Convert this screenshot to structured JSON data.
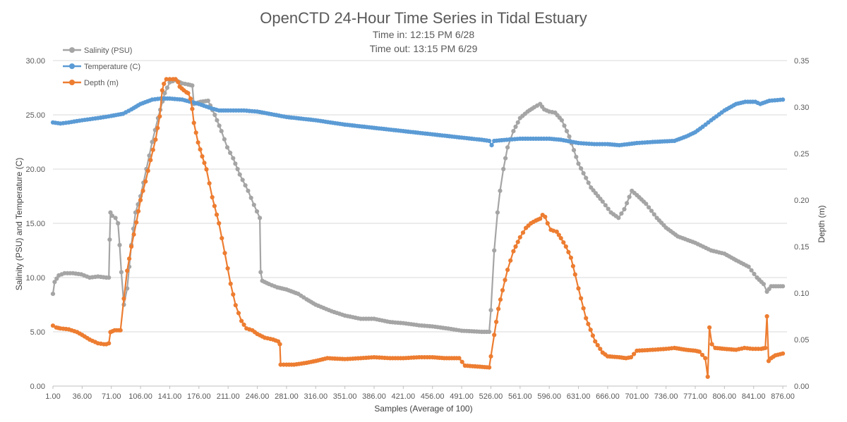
{
  "chart_data": {
    "type": "line",
    "title": "OpenCTD 24-Hour Time Series in Tidal Estuary",
    "subtitle_lines": [
      "Time in: 12:15 PM 6/28",
      "Time out: 13:15 PM 6/29"
    ],
    "xlabel": "Samples (Average of 100)",
    "ylabel_left": "Salinity (PSU) and Temperature (C)",
    "ylabel_right": "Depth (m)",
    "x_ticks": [
      "1.00",
      "36.00",
      "71.00",
      "106.00",
      "141.00",
      "176.00",
      "211.00",
      "246.00",
      "281.00",
      "316.00",
      "351.00",
      "386.00",
      "421.00",
      "456.00",
      "491.00",
      "526.00",
      "561.00",
      "596.00",
      "631.00",
      "666.00",
      "701.00",
      "736.00",
      "771.00",
      "806.00",
      "841.00",
      "876.00"
    ],
    "x_range": [
      1,
      881
    ],
    "y_left_ticks": [
      "0.00",
      "5.00",
      "10.00",
      "15.00",
      "20.00",
      "25.00",
      "30.00"
    ],
    "y_left_range": [
      0,
      30
    ],
    "y_right_ticks": [
      "0.00",
      "0.05",
      "0.10",
      "0.15",
      "0.20",
      "0.25",
      "0.30",
      "0.35"
    ],
    "y_right_range": [
      0,
      0.35
    ],
    "grid": "horizontal",
    "legend_position": "top-left",
    "series": [
      {
        "name": "Salinity (PSU)",
        "axis": "left",
        "color": "#a5a5a5",
        "points": [
          [
            1,
            8.5
          ],
          [
            3,
            9.6
          ],
          [
            8,
            10.2
          ],
          [
            15,
            10.4
          ],
          [
            25,
            10.4
          ],
          [
            35,
            10.3
          ],
          [
            45,
            10.0
          ],
          [
            55,
            10.1
          ],
          [
            65,
            10.0
          ],
          [
            68,
            10.0
          ],
          [
            69,
            13.5
          ],
          [
            70,
            16.0
          ],
          [
            72,
            15.7
          ],
          [
            76,
            15.5
          ],
          [
            79,
            15.0
          ],
          [
            81,
            13.0
          ],
          [
            83,
            10.5
          ],
          [
            86,
            7.5
          ],
          [
            90,
            9.0
          ],
          [
            95,
            13.0
          ],
          [
            100,
            16.0
          ],
          [
            106,
            17.5
          ],
          [
            113,
            20.0
          ],
          [
            120,
            22.5
          ],
          [
            127,
            24.7
          ],
          [
            135,
            27.0
          ],
          [
            141,
            28.0
          ],
          [
            148,
            28.2
          ],
          [
            156,
            27.9
          ],
          [
            163,
            27.8
          ],
          [
            168,
            27.7
          ],
          [
            170,
            26.0
          ],
          [
            178,
            26.2
          ],
          [
            187,
            26.3
          ],
          [
            195,
            25.0
          ],
          [
            203,
            23.5
          ],
          [
            210,
            22.0
          ],
          [
            217,
            21.0
          ],
          [
            225,
            19.5
          ],
          [
            235,
            18.0
          ],
          [
            242,
            16.7
          ],
          [
            249,
            15.5
          ],
          [
            250,
            10.5
          ],
          [
            252,
            9.7
          ],
          [
            260,
            9.4
          ],
          [
            270,
            9.1
          ],
          [
            281,
            8.9
          ],
          [
            295,
            8.5
          ],
          [
            305,
            8.0
          ],
          [
            316,
            7.5
          ],
          [
            335,
            6.9
          ],
          [
            351,
            6.5
          ],
          [
            370,
            6.2
          ],
          [
            386,
            6.2
          ],
          [
            405,
            5.9
          ],
          [
            421,
            5.8
          ],
          [
            440,
            5.6
          ],
          [
            456,
            5.5
          ],
          [
            475,
            5.3
          ],
          [
            491,
            5.1
          ],
          [
            515,
            5.0
          ],
          [
            524,
            5.0
          ],
          [
            526,
            7.0
          ],
          [
            530,
            12.5
          ],
          [
            534,
            16.0
          ],
          [
            537,
            18.0
          ],
          [
            541,
            20.0
          ],
          [
            546,
            22.0
          ],
          [
            553,
            23.5
          ],
          [
            561,
            24.7
          ],
          [
            570,
            25.3
          ],
          [
            578,
            25.7
          ],
          [
            585,
            26.0
          ],
          [
            590,
            25.5
          ],
          [
            596,
            25.3
          ],
          [
            603,
            25.2
          ],
          [
            611,
            24.5
          ],
          [
            620,
            23.0
          ],
          [
            631,
            20.5
          ],
          [
            646,
            18.3
          ],
          [
            660,
            17.0
          ],
          [
            670,
            16.0
          ],
          [
            679,
            15.5
          ],
          [
            686,
            16.3
          ],
          [
            695,
            18.0
          ],
          [
            701,
            17.6
          ],
          [
            712,
            16.8
          ],
          [
            725,
            15.5
          ],
          [
            736,
            14.6
          ],
          [
            750,
            13.8
          ],
          [
            771,
            13.2
          ],
          [
            790,
            12.5
          ],
          [
            806,
            12.2
          ],
          [
            820,
            11.6
          ],
          [
            835,
            11.0
          ],
          [
            845,
            10.0
          ],
          [
            853,
            9.4
          ],
          [
            857,
            8.7
          ],
          [
            862,
            9.2
          ],
          [
            876,
            9.2
          ]
        ]
      },
      {
        "name": "Temperature (C)",
        "axis": "left",
        "color": "#5b9bd5",
        "points": [
          [
            1,
            24.3
          ],
          [
            10,
            24.2
          ],
          [
            20,
            24.3
          ],
          [
            36,
            24.5
          ],
          [
            55,
            24.7
          ],
          [
            71,
            24.9
          ],
          [
            85,
            25.1
          ],
          [
            95,
            25.5
          ],
          [
            106,
            26.0
          ],
          [
            120,
            26.4
          ],
          [
            130,
            26.5
          ],
          [
            141,
            26.5
          ],
          [
            156,
            26.4
          ],
          [
            176,
            26.0
          ],
          [
            191,
            25.6
          ],
          [
            200,
            25.4
          ],
          [
            211,
            25.4
          ],
          [
            230,
            25.4
          ],
          [
            246,
            25.3
          ],
          [
            260,
            25.1
          ],
          [
            281,
            24.8
          ],
          [
            316,
            24.5
          ],
          [
            351,
            24.1
          ],
          [
            386,
            23.8
          ],
          [
            421,
            23.5
          ],
          [
            456,
            23.2
          ],
          [
            491,
            22.9
          ],
          [
            515,
            22.7
          ],
          [
            524,
            22.6
          ],
          [
            527,
            22.2
          ],
          [
            530,
            22.6
          ],
          [
            545,
            22.7
          ],
          [
            561,
            22.8
          ],
          [
            580,
            22.8
          ],
          [
            596,
            22.8
          ],
          [
            610,
            22.7
          ],
          [
            631,
            22.4
          ],
          [
            650,
            22.3
          ],
          [
            666,
            22.3
          ],
          [
            680,
            22.2
          ],
          [
            701,
            22.4
          ],
          [
            720,
            22.5
          ],
          [
            746,
            22.6
          ],
          [
            760,
            23.0
          ],
          [
            771,
            23.4
          ],
          [
            780,
            23.9
          ],
          [
            790,
            24.5
          ],
          [
            806,
            25.4
          ],
          [
            820,
            26.0
          ],
          [
            831,
            26.2
          ],
          [
            843,
            26.2
          ],
          [
            849,
            26.0
          ],
          [
            860,
            26.3
          ],
          [
            876,
            26.4
          ]
        ]
      },
      {
        "name": "Depth (m)",
        "axis": "right",
        "color": "#ed7d31",
        "points": [
          [
            1,
            0.065
          ],
          [
            5,
            0.063
          ],
          [
            10,
            0.062
          ],
          [
            20,
            0.061
          ],
          [
            30,
            0.058
          ],
          [
            36,
            0.055
          ],
          [
            45,
            0.05
          ],
          [
            55,
            0.046
          ],
          [
            62,
            0.045
          ],
          [
            65,
            0.045
          ],
          [
            68,
            0.046
          ],
          [
            70,
            0.058
          ],
          [
            75,
            0.06
          ],
          [
            80,
            0.06
          ],
          [
            82,
            0.06
          ],
          [
            86,
            0.094
          ],
          [
            90,
            0.124
          ],
          [
            95,
            0.15
          ],
          [
            101,
            0.176
          ],
          [
            106,
            0.2
          ],
          [
            112,
            0.22
          ],
          [
            118,
            0.243
          ],
          [
            124,
            0.265
          ],
          [
            129,
            0.29
          ],
          [
            132,
            0.318
          ],
          [
            134,
            0.325
          ],
          [
            137,
            0.33
          ],
          [
            141,
            0.33
          ],
          [
            145,
            0.33
          ],
          [
            148,
            0.33
          ],
          [
            151,
            0.327
          ],
          [
            153,
            0.322
          ],
          [
            158,
            0.318
          ],
          [
            161,
            0.316
          ],
          [
            163,
            0.315
          ],
          [
            166,
            0.309
          ],
          [
            168,
            0.298
          ],
          [
            170,
            0.283
          ],
          [
            175,
            0.262
          ],
          [
            180,
            0.247
          ],
          [
            185,
            0.233
          ],
          [
            192,
            0.203
          ],
          [
            200,
            0.175
          ],
          [
            207,
            0.143
          ],
          [
            214,
            0.11
          ],
          [
            220,
            0.087
          ],
          [
            227,
            0.07
          ],
          [
            233,
            0.062
          ],
          [
            240,
            0.06
          ],
          [
            246,
            0.056
          ],
          [
            255,
            0.052
          ],
          [
            265,
            0.05
          ],
          [
            271,
            0.048
          ],
          [
            273,
            0.045
          ],
          [
            274,
            0.023
          ],
          [
            281,
            0.023
          ],
          [
            290,
            0.023
          ],
          [
            305,
            0.025
          ],
          [
            316,
            0.027
          ],
          [
            330,
            0.03
          ],
          [
            351,
            0.029
          ],
          [
            370,
            0.03
          ],
          [
            386,
            0.031
          ],
          [
            405,
            0.03
          ],
          [
            421,
            0.03
          ],
          [
            440,
            0.031
          ],
          [
            456,
            0.031
          ],
          [
            470,
            0.03
          ],
          [
            488,
            0.03
          ],
          [
            495,
            0.022
          ],
          [
            510,
            0.021
          ],
          [
            524,
            0.02
          ],
          [
            526,
            0.032
          ],
          [
            530,
            0.055
          ],
          [
            535,
            0.083
          ],
          [
            540,
            0.103
          ],
          [
            546,
            0.125
          ],
          [
            553,
            0.145
          ],
          [
            561,
            0.16
          ],
          [
            568,
            0.17
          ],
          [
            574,
            0.175
          ],
          [
            580,
            0.178
          ],
          [
            585,
            0.18
          ],
          [
            588,
            0.184
          ],
          [
            591,
            0.182
          ],
          [
            594,
            0.175
          ],
          [
            598,
            0.168
          ],
          [
            601,
            0.167
          ],
          [
            605,
            0.166
          ],
          [
            610,
            0.159
          ],
          [
            616,
            0.15
          ],
          [
            622,
            0.138
          ],
          [
            627,
            0.12
          ],
          [
            631,
            0.105
          ],
          [
            640,
            0.073
          ],
          [
            651,
            0.048
          ],
          [
            660,
            0.036
          ],
          [
            666,
            0.032
          ],
          [
            680,
            0.031
          ],
          [
            688,
            0.03
          ],
          [
            694,
            0.031
          ],
          [
            701,
            0.038
          ],
          [
            720,
            0.039
          ],
          [
            736,
            0.04
          ],
          [
            746,
            0.041
          ],
          [
            760,
            0.039
          ],
          [
            771,
            0.038
          ],
          [
            776,
            0.037
          ],
          [
            783,
            0.03
          ],
          [
            786,
            0.01
          ],
          [
            788,
            0.063
          ],
          [
            791,
            0.045
          ],
          [
            795,
            0.041
          ],
          [
            806,
            0.04
          ],
          [
            820,
            0.039
          ],
          [
            830,
            0.041
          ],
          [
            840,
            0.04
          ],
          [
            850,
            0.04
          ],
          [
            855,
            0.041
          ],
          [
            857,
            0.075
          ],
          [
            859,
            0.027
          ],
          [
            862,
            0.03
          ],
          [
            867,
            0.033
          ],
          [
            876,
            0.035
          ]
        ]
      }
    ]
  }
}
